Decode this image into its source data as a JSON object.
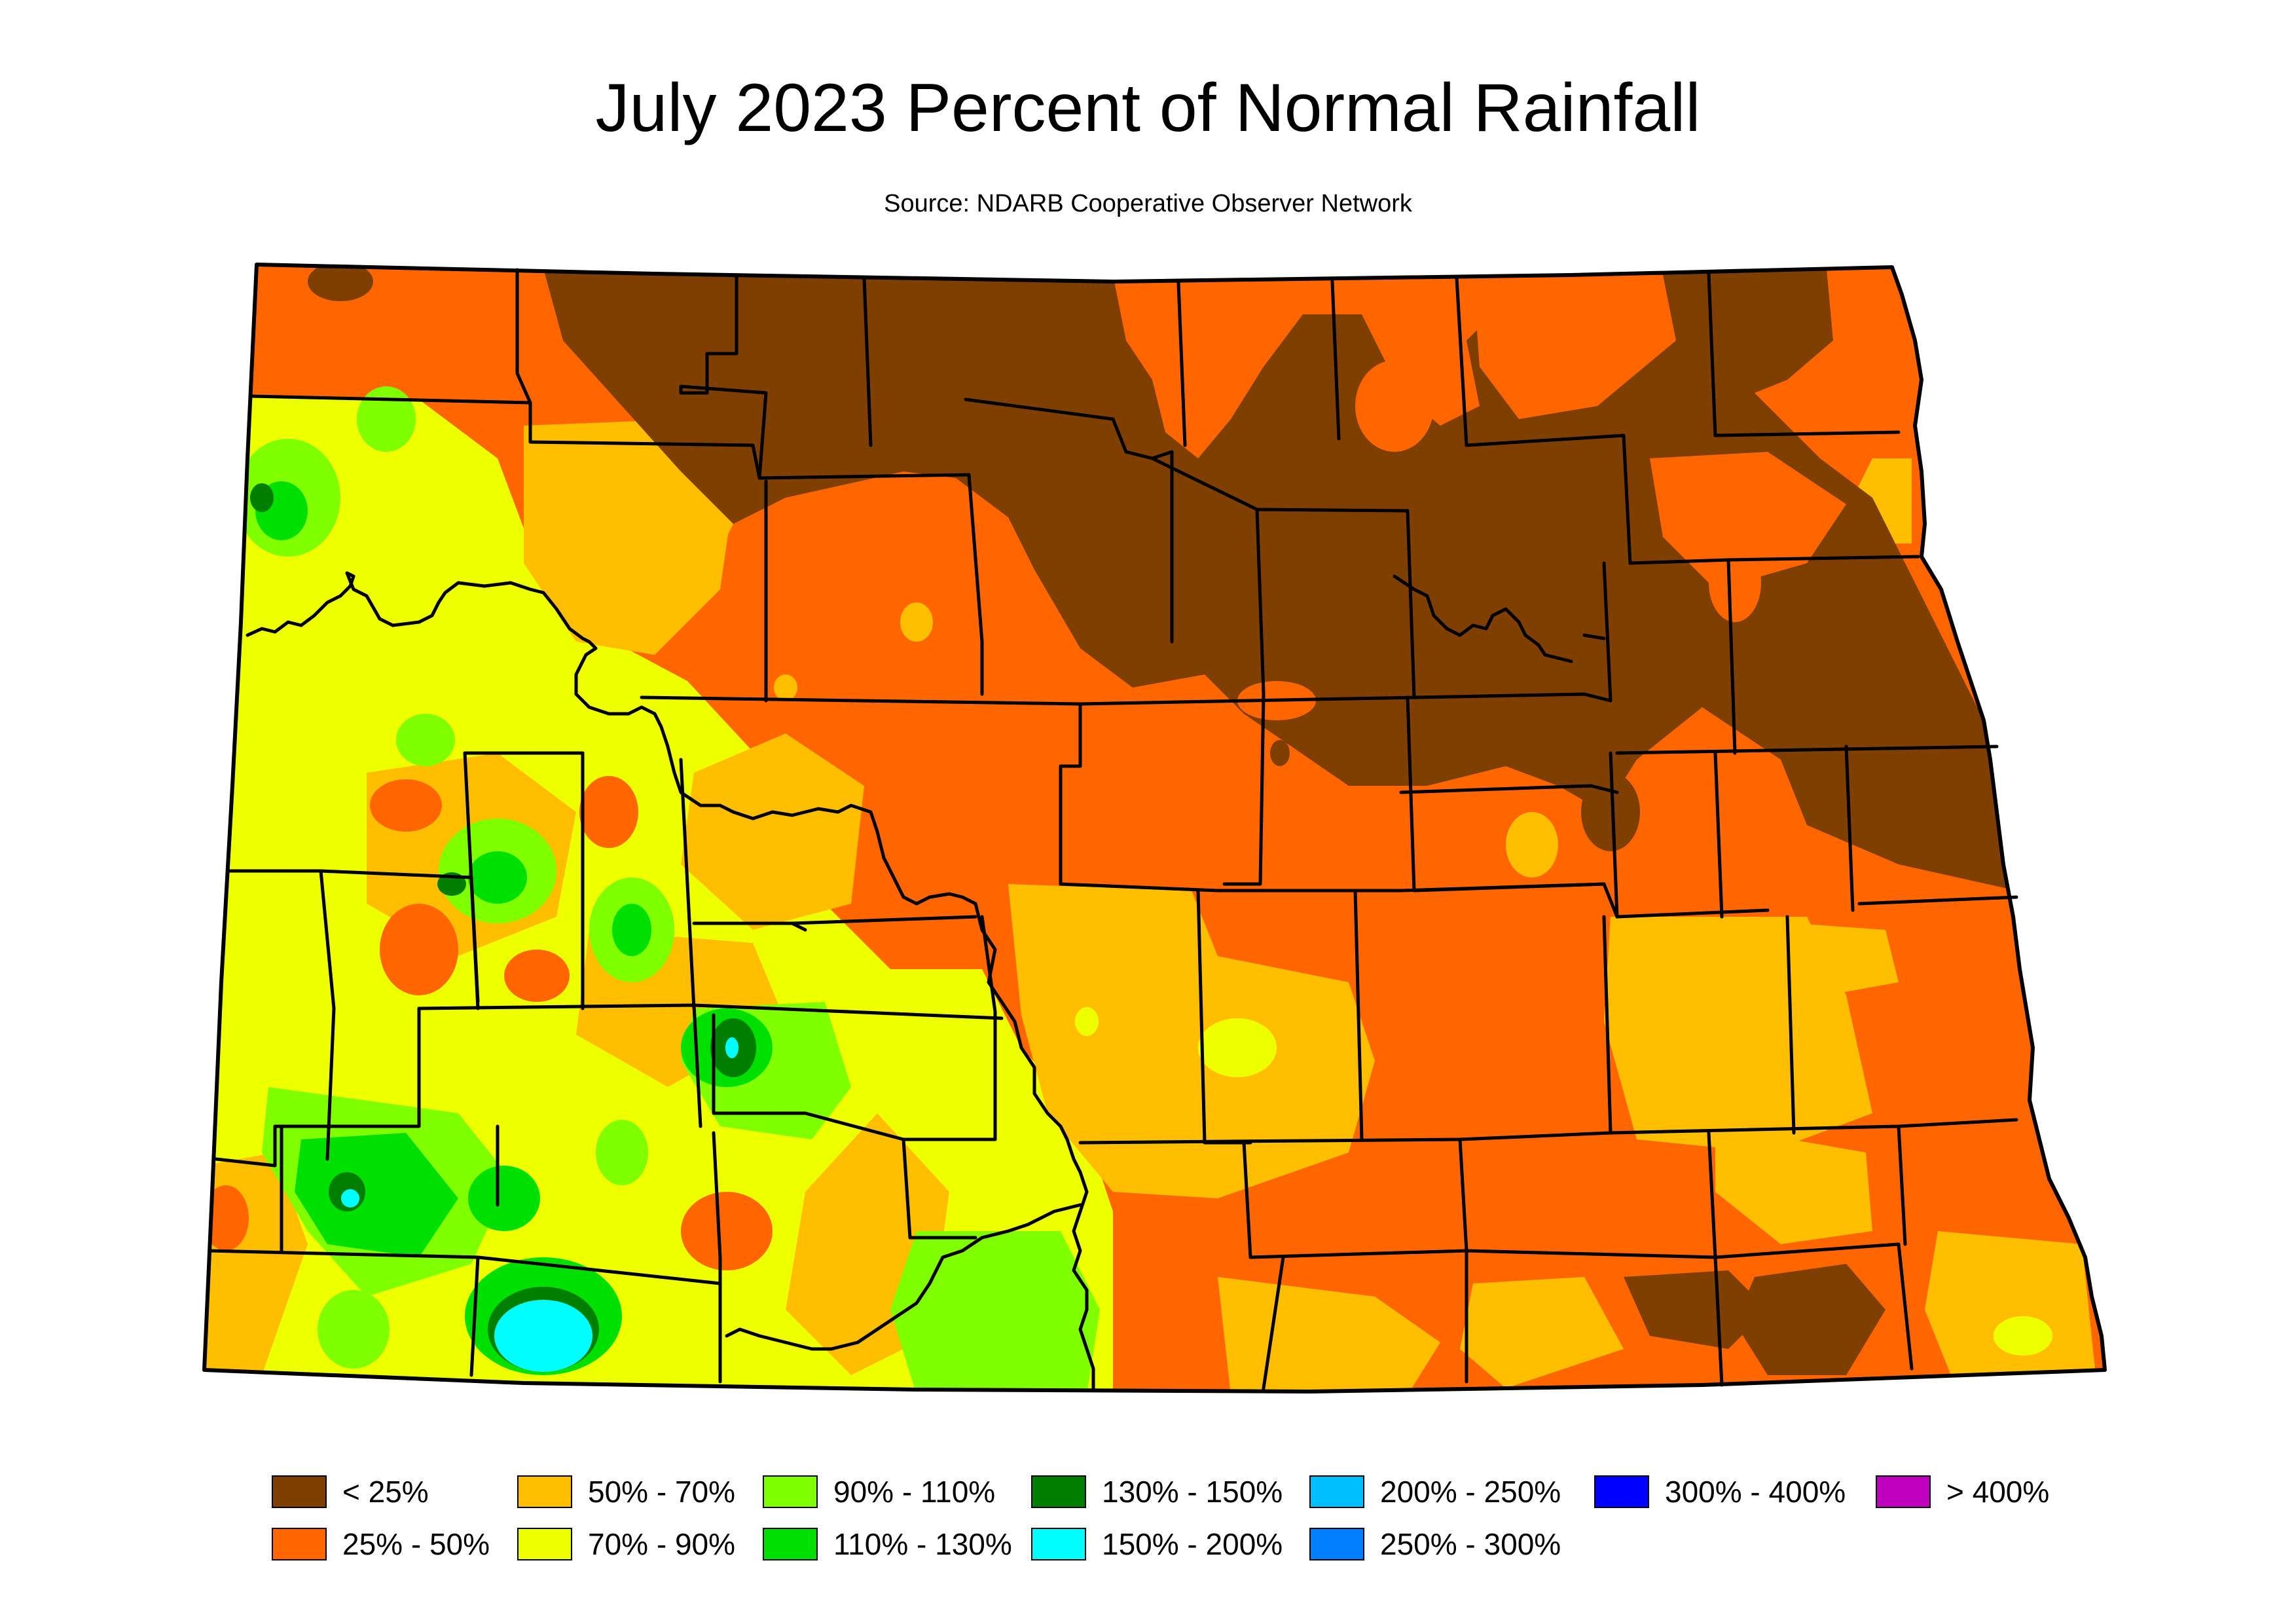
{
  "title": "July 2023 Percent of Normal Rainfall",
  "subtitle": "Source: NDARB Cooperative Observer Network",
  "legend": [
    {
      "label": "< 25%",
      "color": "#7f3f00"
    },
    {
      "label": "25% - 50%",
      "color": "#ff6600"
    },
    {
      "label": "50% - 70%",
      "color": "#ffbf00"
    },
    {
      "label": "70% - 90%",
      "color": "#eeff00"
    },
    {
      "label": "90% - 110%",
      "color": "#80ff00"
    },
    {
      "label": "110% - 130%",
      "color": "#00e000"
    },
    {
      "label": "130% - 150%",
      "color": "#007f00"
    },
    {
      "label": "150% - 200%",
      "color": "#00ffff"
    },
    {
      "label": "200% - 250%",
      "color": "#00bfff"
    },
    {
      "label": "250% - 300%",
      "color": "#0080ff"
    },
    {
      "label": "300% - 400%",
      "color": "#0000ff"
    },
    {
      "label": "> 400%",
      "color": "#bf00bf"
    }
  ]
}
